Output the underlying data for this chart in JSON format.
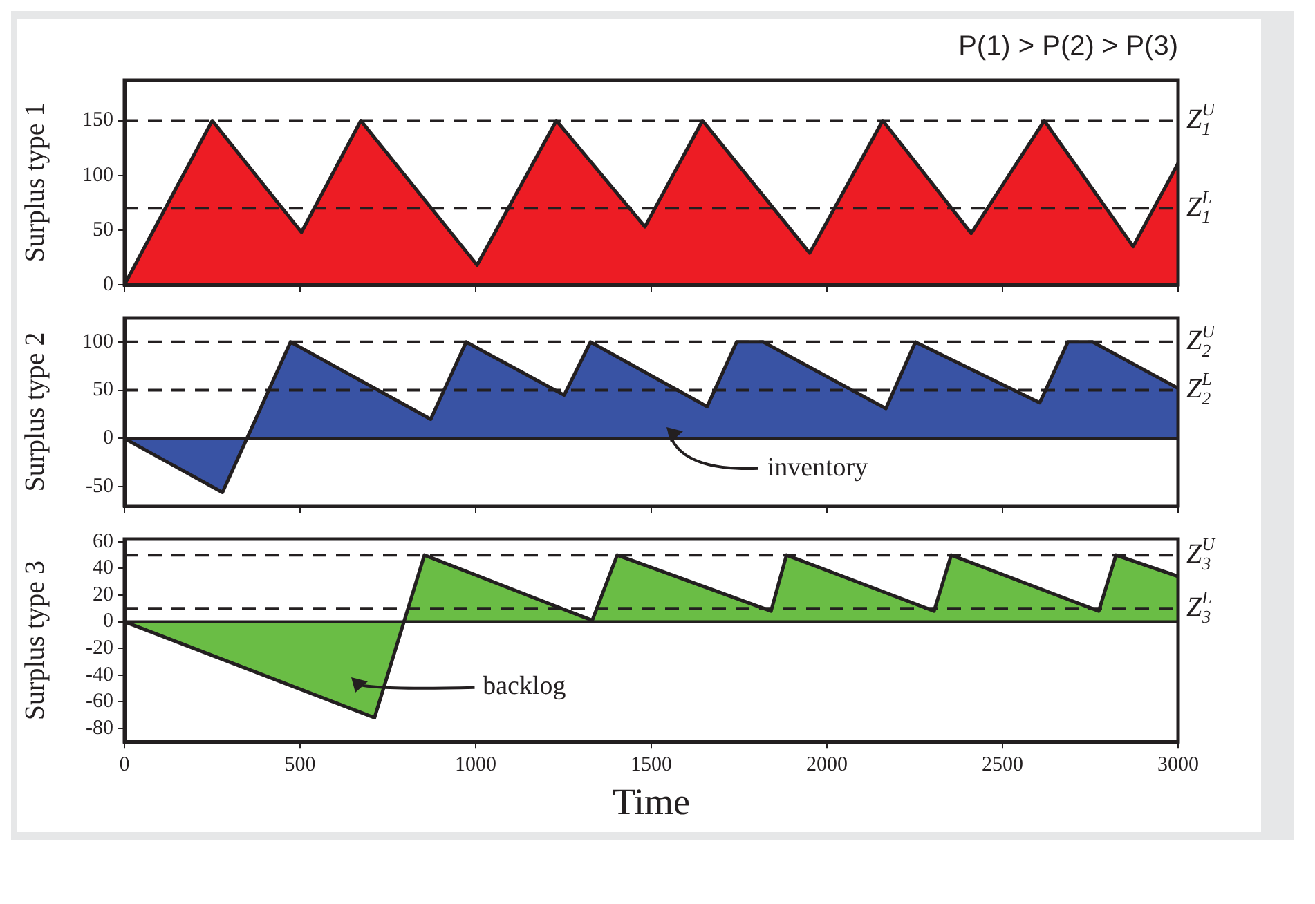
{
  "chart_data": [
    {
      "type": "area",
      "title": "P(1) > P(2) > P(3)",
      "ylabel": "Surplus type 1",
      "xlim": [
        0,
        3000
      ],
      "xticks": [
        0,
        500,
        1000,
        1500,
        2000,
        2500,
        3000
      ],
      "ylim": [
        0,
        187
      ],
      "yticks": [
        0,
        50,
        100,
        150
      ],
      "tick_labels": "y",
      "series": [
        {
          "color": "#ed1c24",
          "x": [
            0,
            250,
            504,
            673,
            1004,
            1230,
            1482,
            1646,
            1951,
            2159,
            2411,
            2619,
            2872,
            3000
          ],
          "values": [
            0,
            150,
            48,
            150,
            18,
            150,
            53,
            150,
            29,
            150,
            47,
            150,
            35,
            111
          ]
        }
      ],
      "ref_lines": [
        {
          "axis": "y",
          "value": 150,
          "label": "Z$_{1}$$^{U}$",
          "line_style": "dashed"
        },
        {
          "axis": "y",
          "value": 70,
          "label": "Z$_{1}$$^{L}$",
          "line_style": "dashed"
        }
      ]
    },
    {
      "type": "area",
      "ylabel": "Surplus type 2",
      "xlim": [
        0,
        3000
      ],
      "xticks": [
        0,
        500,
        1000,
        1500,
        2000,
        2500,
        3000
      ],
      "ylim": [
        -70,
        125
      ],
      "yticks": [
        -50,
        0,
        50,
        100
      ],
      "tick_labels": "y",
      "series": [
        {
          "color": "#3953a4",
          "x": [
            0,
            279,
            473,
            872,
            973,
            1252,
            1327,
            1659,
            1743,
            1819,
            2168,
            2252,
            2606,
            2686,
            2757,
            3000
          ],
          "values": [
            0,
            -56,
            100,
            20,
            100,
            45,
            100,
            33,
            100,
            100,
            31,
            100,
            37,
            100,
            100,
            52
          ]
        }
      ],
      "ref_lines": [
        {
          "axis": "y",
          "value": 100,
          "label": "Z$_{2}$$^{U}$",
          "line_style": "dashed"
        },
        {
          "axis": "y",
          "value": 50,
          "label": "Z$_{2}$$^{L}$",
          "line_style": "dashed"
        },
        {
          "axis": "y",
          "value": 0,
          "line_style": "solid"
        }
      ],
      "annotations": [
        "inventory"
      ]
    },
    {
      "type": "area",
      "ylabel": "Surplus type 3",
      "xlabel": "Time",
      "xlim": [
        0,
        3000
      ],
      "xticks": [
        0,
        500,
        1000,
        1500,
        2000,
        2500,
        3000
      ],
      "ylim": [
        -90,
        62
      ],
      "yticks": [
        60,
        40,
        20,
        0,
        -20,
        -40,
        -60,
        -80
      ],
      "series": [
        {
          "color": "#6abd45",
          "x": [
            0,
            712,
            854,
            1332,
            1403,
            1841,
            1885,
            2305,
            2354,
            2774,
            2823,
            3000
          ],
          "values": [
            0,
            -72,
            50,
            1,
            50,
            8,
            50,
            8,
            50,
            8,
            50,
            34
          ]
        }
      ],
      "ref_lines": [
        {
          "axis": "y",
          "value": 50,
          "label": "Z$_{3}$$^{U}$",
          "line_style": "dashed"
        },
        {
          "axis": "y",
          "value": 10,
          "label": "Z$_{3}$$^{L}$",
          "line_style": "dashed"
        },
        {
          "axis": "y",
          "value": 0,
          "line_style": "solid"
        }
      ],
      "annotations": [
        "backlog"
      ]
    }
  ]
}
